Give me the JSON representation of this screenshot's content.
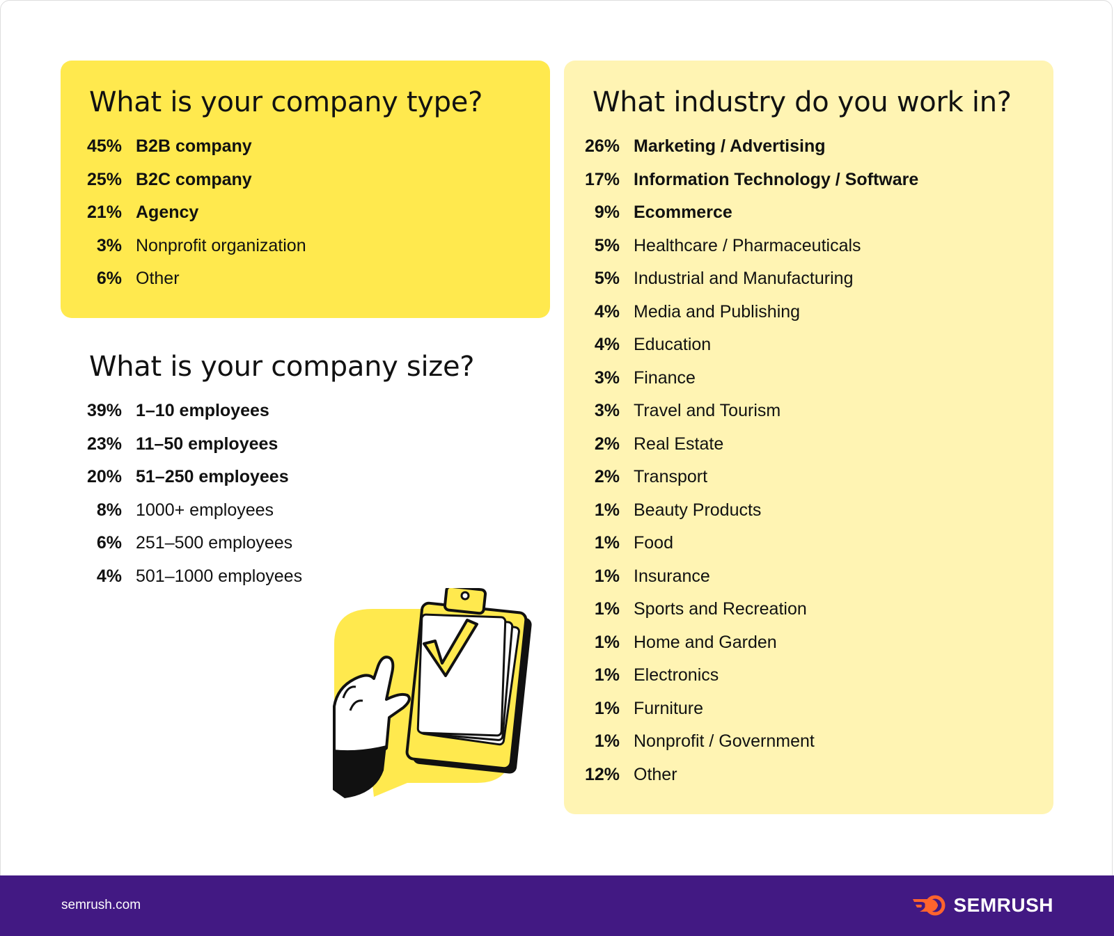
{
  "company_type": {
    "title": "What is your company type?",
    "items": [
      {
        "pct": "45%",
        "label": "B2B company"
      },
      {
        "pct": "25%",
        "label": "B2C company"
      },
      {
        "pct": "21%",
        "label": "Agency"
      },
      {
        "pct": "3%",
        "label": "Nonprofit organization"
      },
      {
        "pct": "6%",
        "label": "Other"
      }
    ]
  },
  "company_size": {
    "title": "What is your company size?",
    "items": [
      {
        "pct": "39%",
        "label": "1–10 employees"
      },
      {
        "pct": "23%",
        "label": "11–50 employees"
      },
      {
        "pct": "20%",
        "label": "51–250 employees"
      },
      {
        "pct": "8%",
        "label": "1000+ employees"
      },
      {
        "pct": "6%",
        "label": "251–500 employees"
      },
      {
        "pct": "4%",
        "label": "501–1000 employees"
      }
    ]
  },
  "industry": {
    "title": "What industry do you work in?",
    "items": [
      {
        "pct": "26%",
        "label": "Marketing / Advertising"
      },
      {
        "pct": "17%",
        "label": "Information Technology / Software"
      },
      {
        "pct": "9%",
        "label": "Ecommerce"
      },
      {
        "pct": "5%",
        "label": "Healthcare / Pharmaceuticals"
      },
      {
        "pct": "5%",
        "label": "Industrial and Manufacturing"
      },
      {
        "pct": "4%",
        "label": "Media and Publishing"
      },
      {
        "pct": "4%",
        "label": "Education"
      },
      {
        "pct": "3%",
        "label": "Finance"
      },
      {
        "pct": "3%",
        "label": "Travel and Tourism"
      },
      {
        "pct": "2%",
        "label": "Real Estate"
      },
      {
        "pct": "2%",
        "label": "Transport"
      },
      {
        "pct": "1%",
        "label": "Beauty Products"
      },
      {
        "pct": "1%",
        "label": "Food"
      },
      {
        "pct": "1%",
        "label": "Insurance"
      },
      {
        "pct": "1%",
        "label": "Sports and Recreation"
      },
      {
        "pct": "1%",
        "label": "Home and Garden"
      },
      {
        "pct": "1%",
        "label": "Electronics"
      },
      {
        "pct": "1%",
        "label": "Furniture"
      },
      {
        "pct": "1%",
        "label": "Nonprofit / Government"
      },
      {
        "pct": "12%",
        "label": "Other"
      }
    ]
  },
  "footer": {
    "site": "semrush.com",
    "brand": "SEMRUSH"
  },
  "colors": {
    "yellow": "#ffe94e",
    "light_yellow": "#fff4b3",
    "footer_purple": "#421983",
    "brand_orange": "#ff642d"
  },
  "icons": {
    "illustration": "clipboard-checkmark-hand-illustration",
    "brand_logo": "semrush-flame-logo-icon"
  }
}
